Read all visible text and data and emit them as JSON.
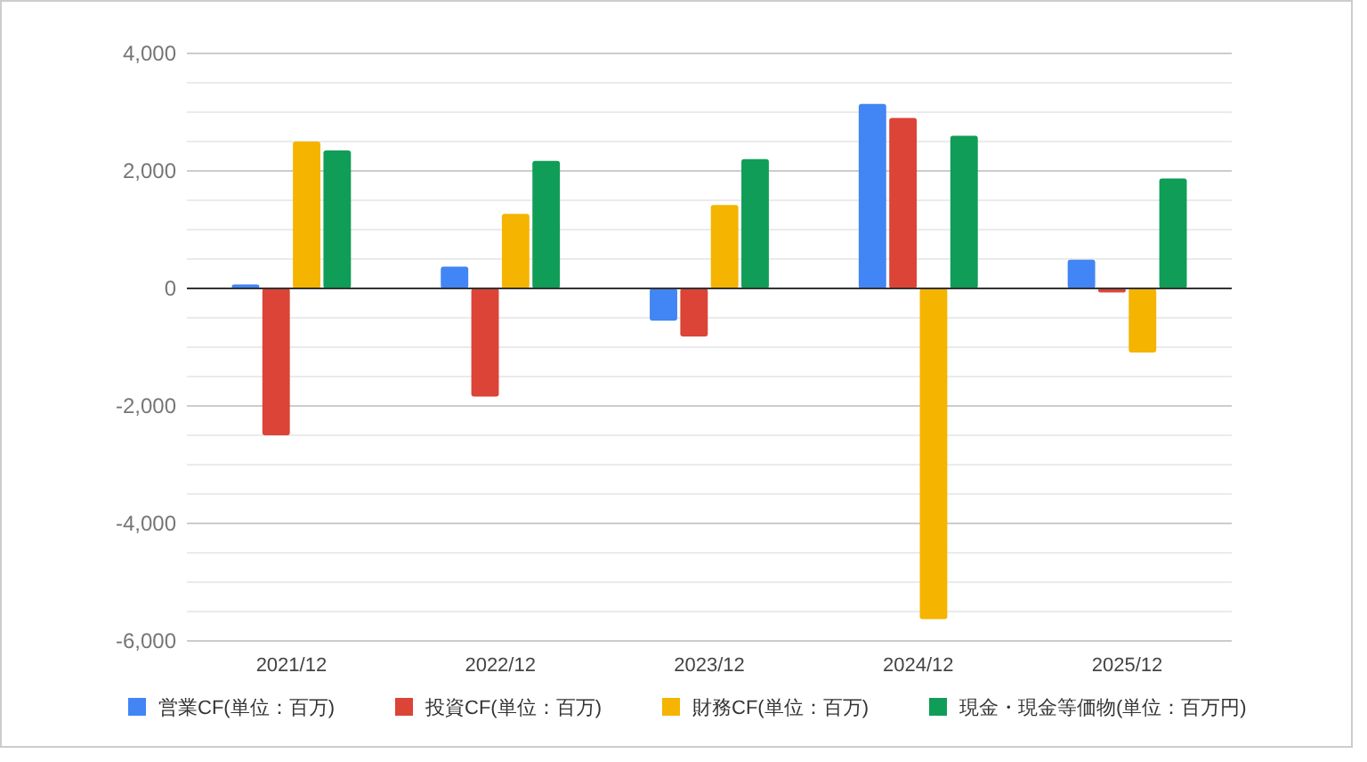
{
  "chart_data": {
    "type": "bar",
    "categories": [
      "2021/12",
      "2022/12",
      "2023/12",
      "2024/12",
      "2025/12"
    ],
    "series": [
      {
        "name": "営業CF(単位：百万)",
        "color": "#4285f4",
        "values": [
          70,
          370,
          -550,
          3140,
          490
        ]
      },
      {
        "name": "投資CF(単位：百万)",
        "color": "#db4437",
        "values": [
          -2500,
          -1840,
          -820,
          2900,
          -70
        ]
      },
      {
        "name": "財務CF(単位：百万)",
        "color": "#f4b400",
        "values": [
          2500,
          1270,
          1420,
          -5630,
          -1090
        ]
      },
      {
        "name": "現金・現金等価物(単位：百万円)",
        "color": "#0f9d58",
        "values": [
          2350,
          2170,
          2200,
          2600,
          1870
        ]
      }
    ],
    "ylim": [
      -6000,
      4000
    ],
    "yticks": [
      {
        "value": -6000,
        "label": "-6,000"
      },
      {
        "value": -5500,
        "label": null
      },
      {
        "value": -5000,
        "label": null
      },
      {
        "value": -4500,
        "label": null
      },
      {
        "value": -4000,
        "label": "-4,000"
      },
      {
        "value": -3500,
        "label": null
      },
      {
        "value": -3000,
        "label": null
      },
      {
        "value": -2500,
        "label": null
      },
      {
        "value": -2000,
        "label": "-2,000"
      },
      {
        "value": -1500,
        "label": null
      },
      {
        "value": -1000,
        "label": null
      },
      {
        "value": -500,
        "label": null
      },
      {
        "value": 0,
        "label": "0"
      },
      {
        "value": 500,
        "label": null
      },
      {
        "value": 1000,
        "label": null
      },
      {
        "value": 1500,
        "label": null
      },
      {
        "value": 2000,
        "label": "2,000"
      },
      {
        "value": 2500,
        "label": null
      },
      {
        "value": 3000,
        "label": null
      },
      {
        "value": 3500,
        "label": null
      },
      {
        "value": 4000,
        "label": "4,000"
      }
    ],
    "grid": true,
    "legend": "bottom"
  }
}
